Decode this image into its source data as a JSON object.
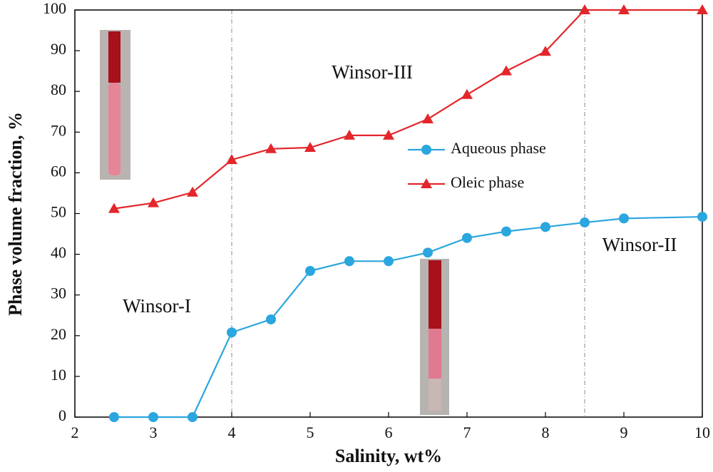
{
  "chart_data": {
    "type": "line",
    "x_label": "Salinity, wt%",
    "y_label": "Phase volume fraction, %",
    "x": [
      2.5,
      3,
      3.5,
      4,
      4.5,
      5,
      5.5,
      6,
      6.5,
      7,
      7.5,
      8,
      8.5,
      9,
      10
    ],
    "series": [
      {
        "name": "Aqueous phase",
        "color": "#2ba6de",
        "marker": "circle",
        "values": [
          0,
          0,
          0,
          20.8,
          24,
          35.9,
          38.3,
          38.3,
          40.4,
          44,
          45.6,
          46.7,
          47.8,
          48.8,
          49.2
        ]
      },
      {
        "name": "Oleic phase",
        "color": "#e3262a",
        "marker": "triangle",
        "values": [
          51.2,
          52.6,
          55.2,
          63.2,
          65.9,
          66.2,
          69.2,
          69.2,
          73.2,
          79.2,
          85,
          89.8,
          100,
          100,
          100
        ]
      }
    ],
    "xlim": [
      2,
      10
    ],
    "xticks": [
      2,
      3,
      4,
      5,
      6,
      7,
      8,
      9,
      10
    ],
    "ylim": [
      0,
      100
    ],
    "yticks": [
      0,
      10,
      20,
      30,
      40,
      50,
      60,
      70,
      80,
      90,
      100
    ],
    "vlines": [
      4,
      8.5
    ],
    "annotations": [
      "Winsor-I",
      "Winsor-III",
      "Winsor-II"
    ]
  }
}
